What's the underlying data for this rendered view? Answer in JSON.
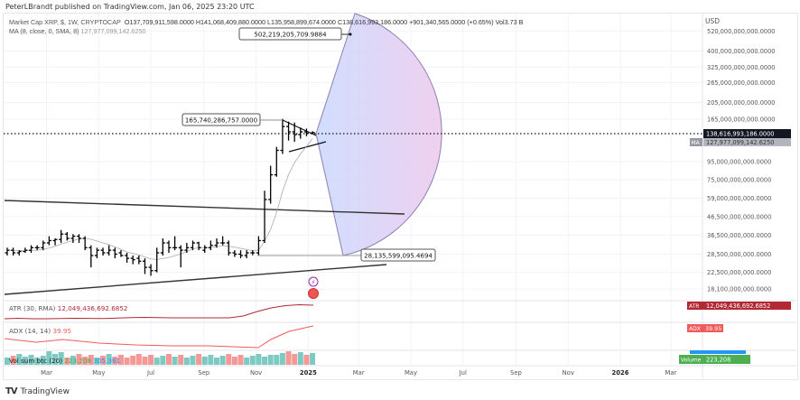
{
  "header": {
    "published": "PeterLBrandt published on TradingView.com, Jan 06, 2025 23:20 UTC"
  },
  "legend": {
    "symbol": "Market Cap XRP, $, 1W, CRYPTOCAP",
    "open": "O137,709,911,598.0000",
    "high": "H141,068,409,880.0000",
    "low": "L135,958,899,674.0000",
    "close": "C138,616,993,186.0000",
    "change": "+901,340,565.0000 (+0.65%)",
    "vol": "Vol3.73 B",
    "ma_label": "MA (8, close, 0, SMA, 8)",
    "ma_value": "127,977,099,142.6250"
  },
  "axis": {
    "currency": "USD",
    "y_ticks": [
      "520,000,000,000.0000",
      "400,000,000,000.0000",
      "325,000,000,000.0000",
      "265,000,000,000.0000",
      "205,000,000,000.0000",
      "165,000,000,000.0000",
      "95,000,000,000.0000",
      "75,000,000,000.0000",
      "59,000,000,000.0000",
      "46,500,000,000.0000",
      "36,500,000,000.0000",
      "28,500,000,000.0000",
      "22,500,000,000.0000",
      "18,100,000,000.0000"
    ],
    "x_ticks": [
      "Mar",
      "May",
      "Jul",
      "Sep",
      "Nov",
      "2025",
      "Mar",
      "May",
      "Jul",
      "Sep",
      "Nov",
      "2026",
      "Mar"
    ],
    "price_label": "138,616,993,186.0000",
    "ma_tag": "MA",
    "ma_label": "127,977,099,142.6250"
  },
  "annotations": {
    "target": "502,219,205,709.9884",
    "high": "165,740,286,757.0000",
    "low": "28,135,599,095.4694"
  },
  "atr": {
    "label": "ATR (30, RMA)",
    "value": "12,049,436,692.6852",
    "tag": "ATR"
  },
  "adx": {
    "label": "ADX (14, 14)",
    "value": "39.95",
    "tag": "ADX"
  },
  "volume": {
    "label": "Vol sum btc (20)",
    "value": "223,208",
    "value2": "305,361",
    "tag": "Volume"
  },
  "footer": {
    "brand": "TradingView"
  },
  "colors": {
    "up": "#26a69a",
    "down": "#ef5350",
    "atr": "#b22833",
    "adx": "#f05a5a",
    "vol_up": "#4caf50"
  },
  "chart_data": {
    "type": "ohlc",
    "title": "Market Cap XRP, $, 1W, CRYPTOCAP",
    "y_scale": "log",
    "ylabel": "USD",
    "units": "billions USD",
    "ylim": [
      16,
      560
    ],
    "xlim": [
      "2024-01-08",
      "2026-04-01"
    ],
    "bars": [
      [
        "2024-01-15",
        29,
        31,
        28,
        30
      ],
      [
        "2024-01-22",
        30,
        31,
        28,
        29
      ],
      [
        "2024-01-29",
        29,
        30,
        28,
        29.5
      ],
      [
        "2024-02-05",
        29.5,
        31,
        29,
        30
      ],
      [
        "2024-02-12",
        30,
        32,
        29,
        31
      ],
      [
        "2024-02-19",
        31,
        32,
        30,
        31
      ],
      [
        "2024-02-26",
        31,
        34,
        30,
        33
      ],
      [
        "2024-03-04",
        33,
        36,
        32,
        34
      ],
      [
        "2024-03-11",
        34,
        35,
        32,
        34.5
      ],
      [
        "2024-03-18",
        34.5,
        39,
        33,
        37
      ],
      [
        "2024-03-25",
        37,
        38,
        34,
        35
      ],
      [
        "2024-04-01",
        35,
        37,
        33,
        36
      ],
      [
        "2024-04-08",
        36,
        37,
        33,
        35
      ],
      [
        "2024-04-15",
        35,
        36,
        30,
        31
      ],
      [
        "2024-04-22",
        31,
        32,
        24,
        28
      ],
      [
        "2024-04-29",
        28,
        31,
        27,
        30
      ],
      [
        "2024-05-06",
        30,
        31,
        28,
        29
      ],
      [
        "2024-05-13",
        29,
        32,
        28,
        30
      ],
      [
        "2024-05-20",
        30,
        31,
        27,
        28.5
      ],
      [
        "2024-05-27",
        29,
        30,
        27.5,
        28
      ],
      [
        "2024-06-03",
        28,
        29,
        25.5,
        27
      ],
      [
        "2024-06-10",
        27,
        28,
        25,
        26.5
      ],
      [
        "2024-06-17",
        27,
        28,
        25,
        26
      ],
      [
        "2024-06-24",
        26,
        27,
        22,
        24
      ],
      [
        "2024-07-01",
        24,
        25,
        21.5,
        23
      ],
      [
        "2024-07-08",
        23,
        31,
        22.5,
        29
      ],
      [
        "2024-07-15",
        29,
        35,
        28,
        33
      ],
      [
        "2024-07-22",
        33,
        34,
        29,
        31
      ],
      [
        "2024-07-29",
        31,
        36,
        30,
        31
      ],
      [
        "2024-08-05",
        31,
        32,
        24,
        30
      ],
      [
        "2024-08-12",
        30,
        33,
        29,
        31
      ],
      [
        "2024-08-19",
        31,
        34,
        30,
        33
      ],
      [
        "2024-08-26",
        33,
        33.5,
        30,
        31
      ],
      [
        "2024-09-02",
        30,
        32,
        29,
        31
      ],
      [
        "2024-09-09",
        31,
        34,
        30,
        32
      ],
      [
        "2024-09-16",
        32,
        35,
        31,
        33
      ],
      [
        "2024-09-23",
        33,
        36,
        32,
        33
      ],
      [
        "2024-09-30",
        33,
        34,
        28,
        29
      ],
      [
        "2024-10-07",
        29,
        30,
        27.5,
        28.5
      ],
      [
        "2024-10-14",
        28.5,
        30,
        27,
        28
      ],
      [
        "2024-10-21",
        28,
        30,
        27,
        29
      ],
      [
        "2024-10-28",
        29,
        30,
        28.1,
        29
      ],
      [
        "2024-11-04",
        29,
        36,
        28,
        34
      ],
      [
        "2024-11-11",
        34,
        65,
        33,
        58
      ],
      [
        "2024-11-18",
        58,
        90,
        55,
        80
      ],
      [
        "2024-11-25",
        80,
        115,
        78,
        110
      ],
      [
        "2024-12-02",
        110,
        165.7,
        105,
        150
      ],
      [
        "2024-12-09",
        150,
        160,
        125,
        140
      ],
      [
        "2024-12-16",
        140,
        158,
        123,
        135
      ],
      [
        "2024-12-23",
        135,
        148,
        128,
        140
      ],
      [
        "2024-12-30",
        140,
        146,
        132,
        137.7
      ],
      [
        "2025-01-06",
        137.71,
        141.07,
        135.96,
        138.62
      ]
    ],
    "ma_8": [
      30,
      30,
      29.8,
      29.8,
      29.9,
      30,
      30.3,
      30.9,
      31.6,
      32.5,
      33.3,
      34,
      34.8,
      35,
      34.6,
      33.8,
      33,
      32.3,
      31.3,
      30.3,
      29.3,
      28.8,
      28.2,
      27.5,
      26.8,
      26.6,
      26.9,
      27.3,
      27.9,
      28.6,
      29.5,
      30.4,
      31.1,
      31,
      31.1,
      31.4,
      31.8,
      31.6,
      31.2,
      30.7,
      30.3,
      29.8,
      30.1,
      33.7,
      39.3,
      49,
      64.6,
      80.2,
      93.8,
      105,
      116,
      127.98
    ],
    "atr_value": 12049436692.6852,
    "adx_value": 39.95,
    "volume_value": 223208
  }
}
